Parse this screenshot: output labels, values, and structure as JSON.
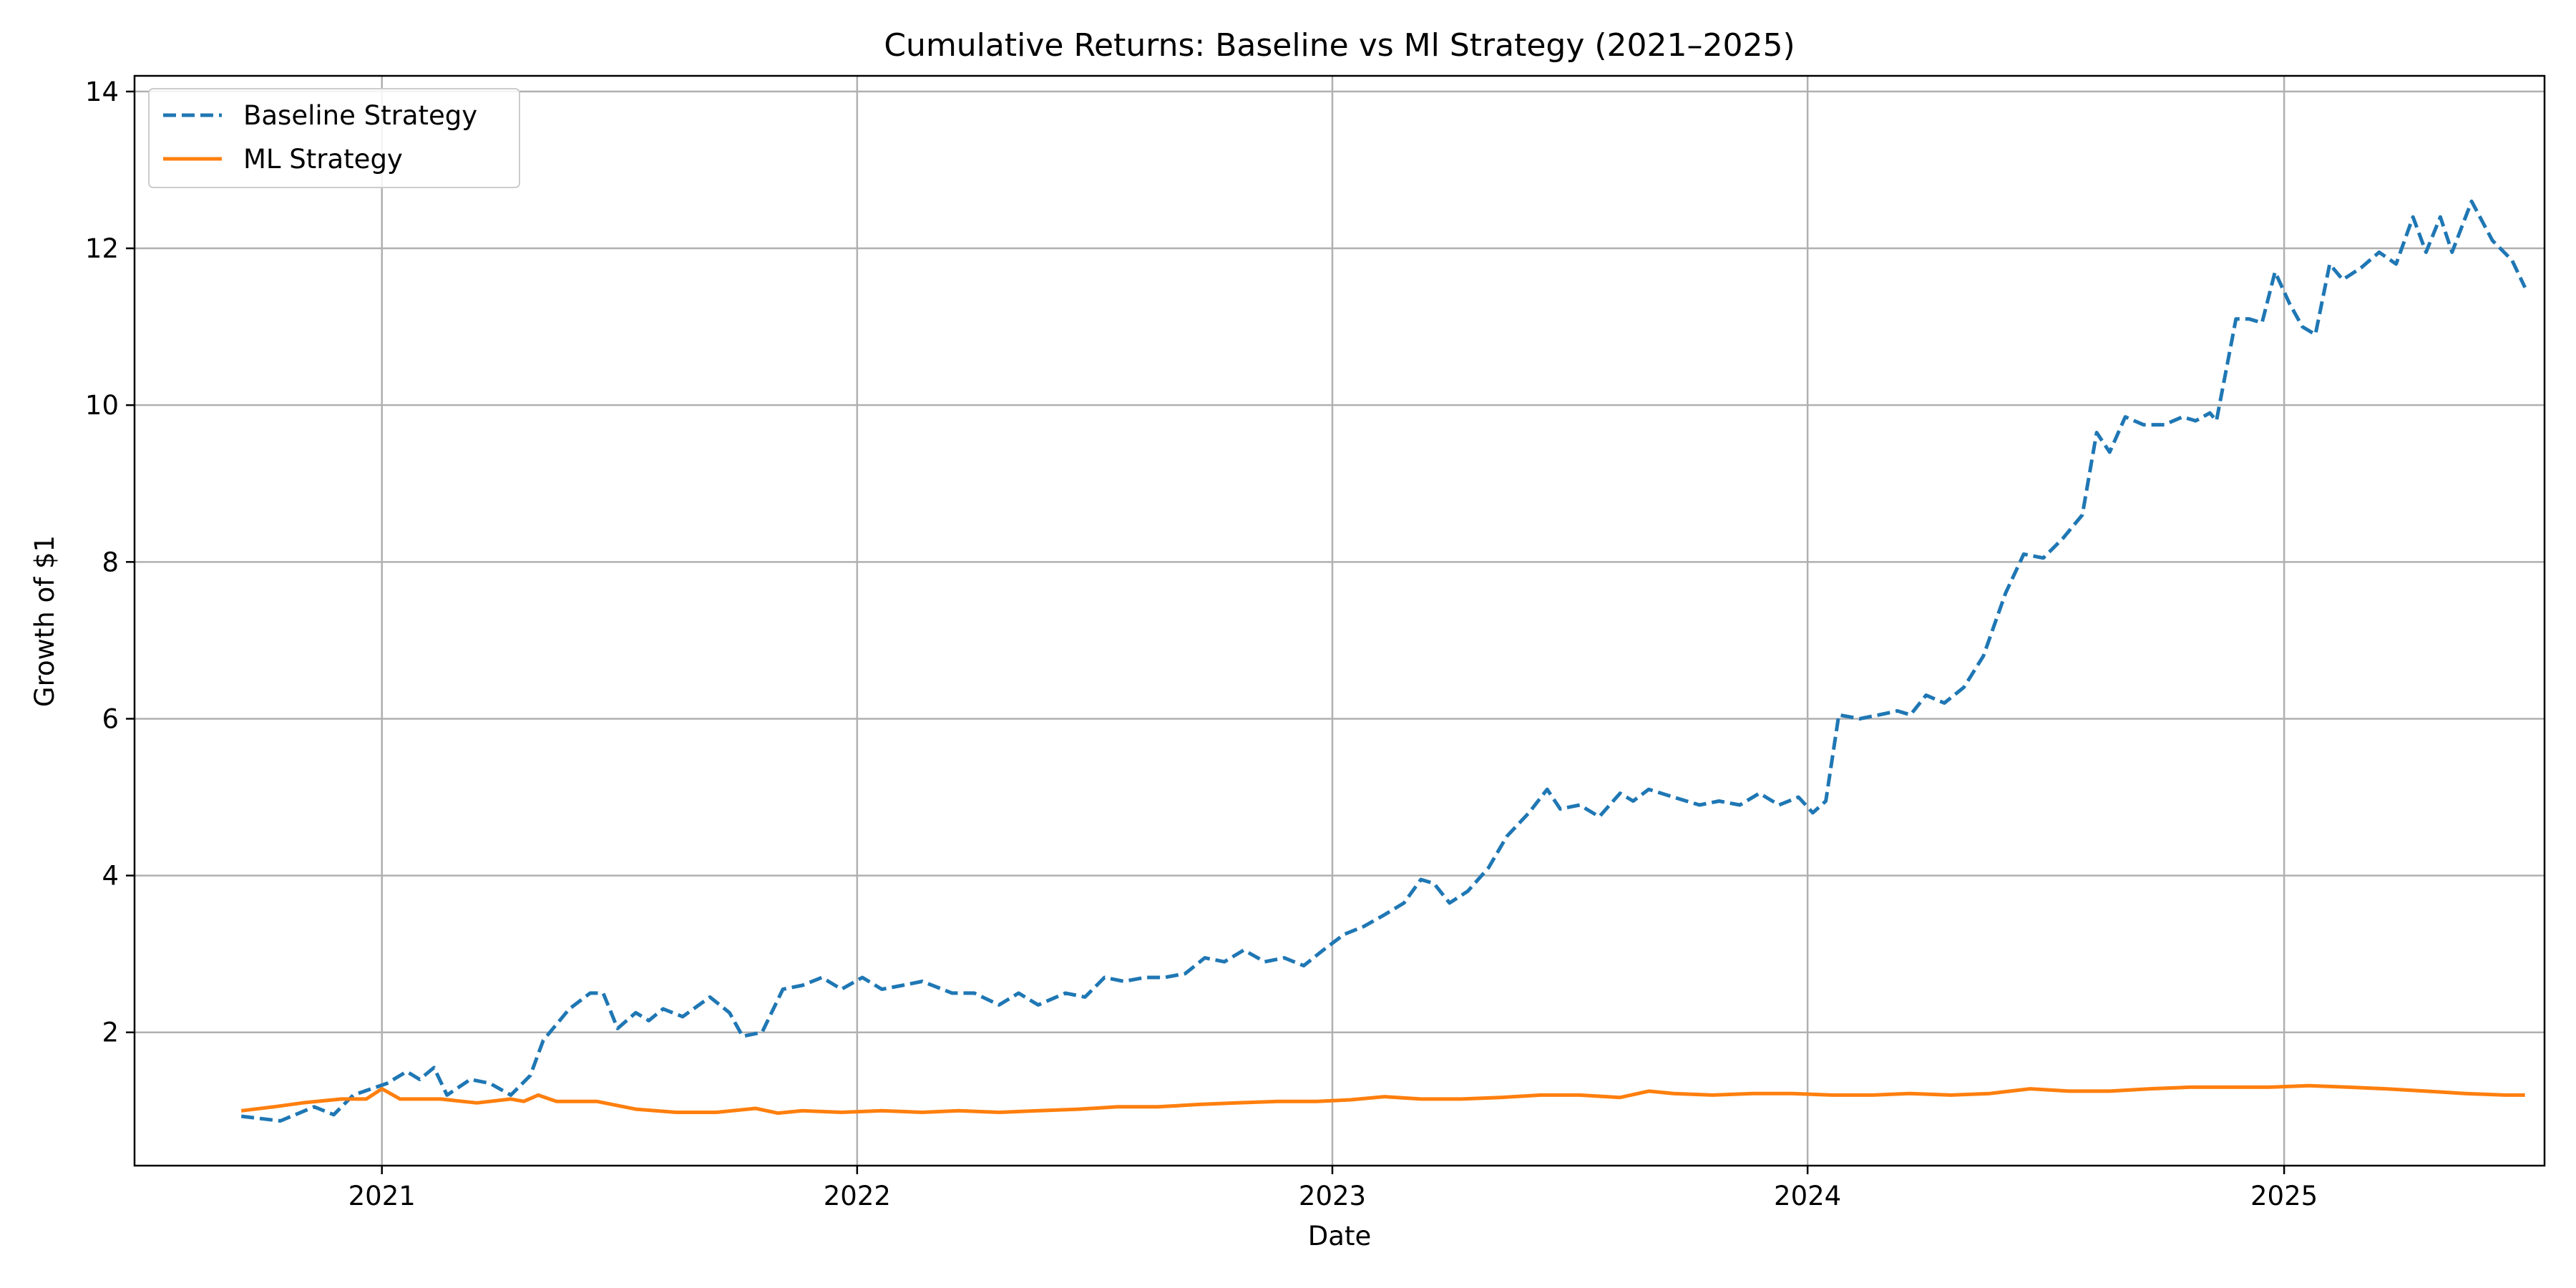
{
  "chart_data": {
    "type": "line",
    "title": "Cumulative Returns: Baseline vs Ml Strategy (2021–2025)",
    "xlabel": "Date",
    "ylabel": "Growth of $1",
    "xlim": [
      "2020-06-25",
      "2025-07-20"
    ],
    "ylim": [
      0.3,
      14.2
    ],
    "x_ticks": [
      "2021-01-01",
      "2022-01-01",
      "2023-01-01",
      "2024-01-01",
      "2025-01-01"
    ],
    "x_tick_labels": [
      "2021",
      "2022",
      "2023",
      "2024",
      "2025"
    ],
    "y_ticks": [
      2,
      4,
      6,
      8,
      10,
      12,
      14
    ],
    "y_tick_labels": [
      "2",
      "4",
      "6",
      "8",
      "10",
      "12",
      "14"
    ],
    "grid": true,
    "legend": "top-left",
    "series": [
      {
        "name": "Baseline Strategy",
        "color": "#1f77b4",
        "style": "dashed",
        "points": [
          [
            "2020-09-15",
            0.93
          ],
          [
            "2020-10-15",
            0.87
          ],
          [
            "2020-11-10",
            1.05
          ],
          [
            "2020-11-25",
            0.95
          ],
          [
            "2020-12-10",
            1.2
          ],
          [
            "2021-01-05",
            1.35
          ],
          [
            "2021-01-20",
            1.5
          ],
          [
            "2021-01-30",
            1.4
          ],
          [
            "2021-02-10",
            1.55
          ],
          [
            "2021-02-20",
            1.2
          ],
          [
            "2021-03-10",
            1.4
          ],
          [
            "2021-03-25",
            1.35
          ],
          [
            "2021-04-10",
            1.2
          ],
          [
            "2021-04-25",
            1.45
          ],
          [
            "2021-05-05",
            1.9
          ],
          [
            "2021-05-25",
            2.3
          ],
          [
            "2021-06-10",
            2.5
          ],
          [
            "2021-06-20",
            2.5
          ],
          [
            "2021-07-01",
            2.05
          ],
          [
            "2021-07-15",
            2.25
          ],
          [
            "2021-07-25",
            2.15
          ],
          [
            "2021-08-05",
            2.3
          ],
          [
            "2021-08-20",
            2.2
          ],
          [
            "2021-09-10",
            2.45
          ],
          [
            "2021-09-25",
            2.25
          ],
          [
            "2021-10-05",
            1.95
          ],
          [
            "2021-10-20",
            2.0
          ],
          [
            "2021-11-05",
            2.55
          ],
          [
            "2021-11-20",
            2.6
          ],
          [
            "2021-12-05",
            2.7
          ],
          [
            "2021-12-20",
            2.55
          ],
          [
            "2022-01-05",
            2.7
          ],
          [
            "2022-01-20",
            2.55
          ],
          [
            "2022-02-05",
            2.6
          ],
          [
            "2022-02-20",
            2.65
          ],
          [
            "2022-03-15",
            2.5
          ],
          [
            "2022-04-01",
            2.5
          ],
          [
            "2022-04-20",
            2.35
          ],
          [
            "2022-05-05",
            2.5
          ],
          [
            "2022-05-20",
            2.35
          ],
          [
            "2022-06-10",
            2.5
          ],
          [
            "2022-06-25",
            2.45
          ],
          [
            "2022-07-10",
            2.7
          ],
          [
            "2022-07-25",
            2.65
          ],
          [
            "2022-08-10",
            2.7
          ],
          [
            "2022-08-25",
            2.7
          ],
          [
            "2022-09-10",
            2.75
          ],
          [
            "2022-09-25",
            2.95
          ],
          [
            "2022-10-10",
            2.9
          ],
          [
            "2022-10-25",
            3.05
          ],
          [
            "2022-11-10",
            2.9
          ],
          [
            "2022-11-25",
            2.95
          ],
          [
            "2022-12-10",
            2.85
          ],
          [
            "2022-12-25",
            3.05
          ],
          [
            "2023-01-10",
            3.25
          ],
          [
            "2023-01-25",
            3.35
          ],
          [
            "2023-02-10",
            3.5
          ],
          [
            "2023-02-25",
            3.65
          ],
          [
            "2023-03-10",
            3.95
          ],
          [
            "2023-03-20",
            3.9
          ],
          [
            "2023-04-01",
            3.65
          ],
          [
            "2023-04-15",
            3.8
          ],
          [
            "2023-05-01",
            4.1
          ],
          [
            "2023-05-15",
            4.5
          ],
          [
            "2023-06-01",
            4.8
          ],
          [
            "2023-06-15",
            5.1
          ],
          [
            "2023-06-25",
            4.85
          ],
          [
            "2023-07-10",
            4.9
          ],
          [
            "2023-07-25",
            4.75
          ],
          [
            "2023-08-10",
            5.05
          ],
          [
            "2023-08-20",
            4.95
          ],
          [
            "2023-09-01",
            5.1
          ],
          [
            "2023-09-20",
            5.0
          ],
          [
            "2023-10-10",
            4.9
          ],
          [
            "2023-10-25",
            4.95
          ],
          [
            "2023-11-10",
            4.9
          ],
          [
            "2023-11-25",
            5.05
          ],
          [
            "2023-12-10",
            4.9
          ],
          [
            "2023-12-25",
            5.0
          ],
          [
            "2024-01-05",
            4.8
          ],
          [
            "2024-01-15",
            4.95
          ],
          [
            "2024-01-25",
            6.05
          ],
          [
            "2024-02-10",
            6.0
          ],
          [
            "2024-02-25",
            6.05
          ],
          [
            "2024-03-10",
            6.1
          ],
          [
            "2024-03-20",
            6.05
          ],
          [
            "2024-04-01",
            6.3
          ],
          [
            "2024-04-15",
            6.2
          ],
          [
            "2024-04-30",
            6.4
          ],
          [
            "2024-05-15",
            6.8
          ],
          [
            "2024-06-01",
            7.6
          ],
          [
            "2024-06-15",
            8.1
          ],
          [
            "2024-06-30",
            8.05
          ],
          [
            "2024-07-15",
            8.3
          ],
          [
            "2024-07-30",
            8.6
          ],
          [
            "2024-08-10",
            9.65
          ],
          [
            "2024-08-20",
            9.4
          ],
          [
            "2024-09-01",
            9.85
          ],
          [
            "2024-09-15",
            9.75
          ],
          [
            "2024-10-01",
            9.75
          ],
          [
            "2024-10-15",
            9.85
          ],
          [
            "2024-10-25",
            9.8
          ],
          [
            "2024-11-05",
            9.9
          ],
          [
            "2024-11-10",
            9.8
          ],
          [
            "2024-11-25",
            11.1
          ],
          [
            "2024-12-05",
            11.1
          ],
          [
            "2024-12-15",
            11.05
          ],
          [
            "2024-12-25",
            11.7
          ],
          [
            "2025-01-05",
            11.3
          ],
          [
            "2025-01-15",
            11.0
          ],
          [
            "2025-01-25",
            10.9
          ],
          [
            "2025-02-05",
            11.8
          ],
          [
            "2025-02-15",
            11.6
          ],
          [
            "2025-03-01",
            11.75
          ],
          [
            "2025-03-15",
            11.95
          ],
          [
            "2025-03-28",
            11.8
          ],
          [
            "2025-04-10",
            12.4
          ],
          [
            "2025-04-20",
            11.95
          ],
          [
            "2025-05-01",
            12.4
          ],
          [
            "2025-05-10",
            11.95
          ],
          [
            "2025-05-25",
            12.6
          ],
          [
            "2025-06-10",
            12.1
          ],
          [
            "2025-06-25",
            11.85
          ],
          [
            "2025-07-05",
            11.5
          ]
        ]
      },
      {
        "name": "ML Strategy",
        "color": "#ff7f0e",
        "style": "solid",
        "points": [
          [
            "2020-09-15",
            1.0
          ],
          [
            "2020-10-10",
            1.05
          ],
          [
            "2020-11-01",
            1.1
          ],
          [
            "2020-12-01",
            1.15
          ],
          [
            "2020-12-20",
            1.15
          ],
          [
            "2021-01-01",
            1.28
          ],
          [
            "2021-01-15",
            1.15
          ],
          [
            "2021-02-15",
            1.15
          ],
          [
            "2021-03-15",
            1.1
          ],
          [
            "2021-04-10",
            1.15
          ],
          [
            "2021-04-20",
            1.12
          ],
          [
            "2021-05-01",
            1.2
          ],
          [
            "2021-05-15",
            1.12
          ],
          [
            "2021-06-15",
            1.12
          ],
          [
            "2021-07-15",
            1.02
          ],
          [
            "2021-08-15",
            0.98
          ],
          [
            "2021-09-15",
            0.98
          ],
          [
            "2021-10-15",
            1.03
          ],
          [
            "2021-11-01",
            0.97
          ],
          [
            "2021-11-20",
            1.0
          ],
          [
            "2021-12-20",
            0.98
          ],
          [
            "2022-01-20",
            1.0
          ],
          [
            "2022-02-20",
            0.98
          ],
          [
            "2022-03-20",
            1.0
          ],
          [
            "2022-04-20",
            0.98
          ],
          [
            "2022-05-20",
            1.0
          ],
          [
            "2022-06-20",
            1.02
          ],
          [
            "2022-07-20",
            1.05
          ],
          [
            "2022-08-20",
            1.05
          ],
          [
            "2022-09-20",
            1.08
          ],
          [
            "2022-10-20",
            1.1
          ],
          [
            "2022-11-20",
            1.12
          ],
          [
            "2022-12-20",
            1.12
          ],
          [
            "2023-01-15",
            1.14
          ],
          [
            "2023-02-10",
            1.18
          ],
          [
            "2023-03-10",
            1.15
          ],
          [
            "2023-04-10",
            1.15
          ],
          [
            "2023-05-10",
            1.17
          ],
          [
            "2023-06-10",
            1.2
          ],
          [
            "2023-07-10",
            1.2
          ],
          [
            "2023-08-10",
            1.17
          ],
          [
            "2023-09-01",
            1.25
          ],
          [
            "2023-09-20",
            1.22
          ],
          [
            "2023-10-20",
            1.2
          ],
          [
            "2023-11-20",
            1.22
          ],
          [
            "2023-12-20",
            1.22
          ],
          [
            "2024-01-20",
            1.2
          ],
          [
            "2024-02-20",
            1.2
          ],
          [
            "2024-03-20",
            1.22
          ],
          [
            "2024-04-20",
            1.2
          ],
          [
            "2024-05-20",
            1.22
          ],
          [
            "2024-06-20",
            1.28
          ],
          [
            "2024-07-20",
            1.25
          ],
          [
            "2024-08-20",
            1.25
          ],
          [
            "2024-09-20",
            1.28
          ],
          [
            "2024-10-20",
            1.3
          ],
          [
            "2024-11-20",
            1.3
          ],
          [
            "2024-12-20",
            1.3
          ],
          [
            "2025-01-20",
            1.32
          ],
          [
            "2025-02-20",
            1.3
          ],
          [
            "2025-03-20",
            1.28
          ],
          [
            "2025-04-20",
            1.25
          ],
          [
            "2025-05-20",
            1.22
          ],
          [
            "2025-06-20",
            1.2
          ],
          [
            "2025-07-05",
            1.2
          ]
        ]
      }
    ]
  }
}
